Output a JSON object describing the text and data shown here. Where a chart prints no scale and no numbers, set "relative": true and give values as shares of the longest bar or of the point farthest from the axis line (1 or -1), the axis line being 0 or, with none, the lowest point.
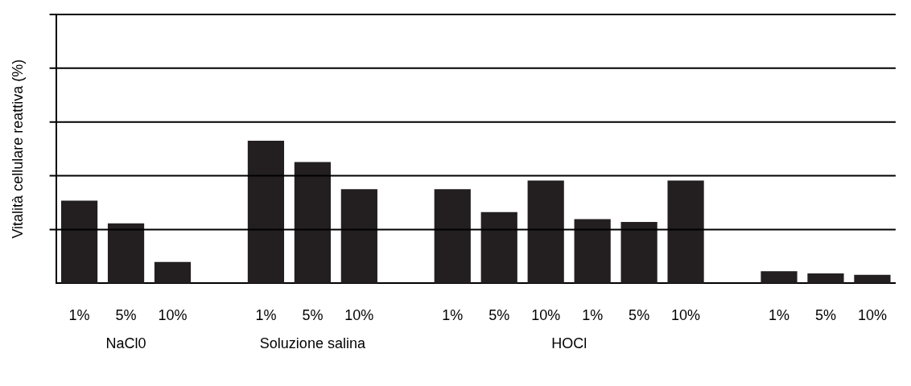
{
  "chart_data": {
    "type": "bar",
    "relative": true,
    "ylabel": "Vitalità cellulare reattiva (%)",
    "categories": [
      "1%",
      "5%",
      "10%",
      null,
      "1%",
      "5%",
      "10%",
      null,
      "1%",
      "5%",
      "10%",
      "1%",
      "5%",
      "10%",
      null,
      "1%",
      "5%",
      "10%"
    ],
    "values": [
      0.58,
      0.42,
      0.15,
      null,
      1,
      0.85,
      0.66,
      null,
      0.66,
      0.5,
      0.72,
      0.45,
      0.43,
      0.72,
      null,
      0.085,
      0.07,
      0.06
    ],
    "color": "#231f20",
    "ref_lines": [
      {
        "axis": "y",
        "value": 0.377,
        "color": "#000000"
      },
      {
        "axis": "y",
        "value": 0.754,
        "color": "#000000"
      },
      {
        "axis": "y",
        "value": 1.131,
        "color": "#000000"
      },
      {
        "axis": "y",
        "value": 1.508,
        "color": "#000000"
      },
      {
        "axis": "y",
        "value": 1.884,
        "color": "#000000"
      }
    ],
    "annotations": [
      "NaCl0",
      "Soluzione salina",
      "HOCl"
    ]
  }
}
